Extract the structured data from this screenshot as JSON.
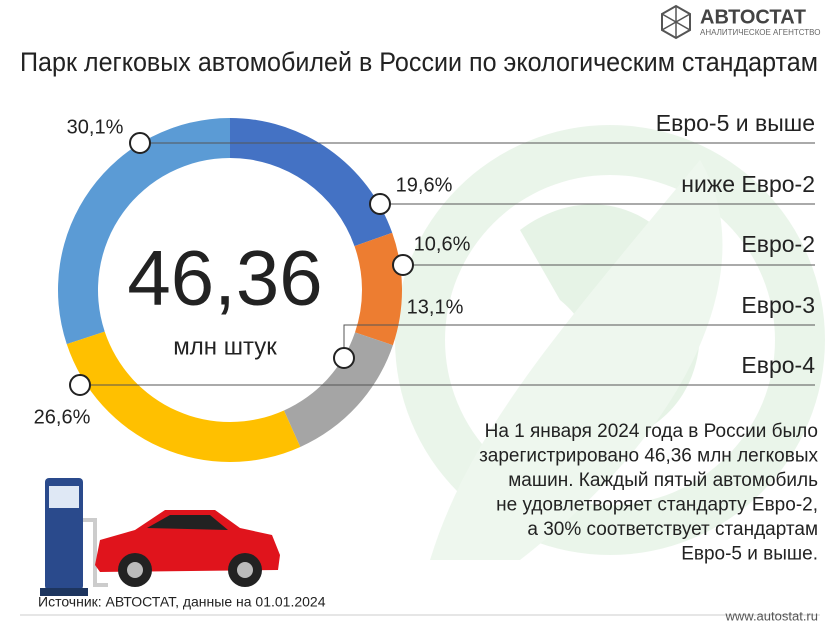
{
  "chart_data": {
    "type": "donut",
    "title": "Парк легковых автомобилей в России по экологическим стандартам",
    "brand": "АВТОСТАТ",
    "brand_subtitle": "АНАЛИТИЧЕСКОЕ АГЕНТСТВО",
    "total": "46,36",
    "total_unit": "млн штук",
    "categories": [
      "Евро-5 и выше",
      "ниже Евро-2",
      "Евро-2",
      "Евро-3",
      "Евро-4"
    ],
    "values": [
      30.1,
      19.6,
      10.6,
      13.1,
      26.6
    ],
    "value_labels": [
      "30,1%",
      "19,6%",
      "10,6%",
      "13,1%",
      "26,6%"
    ],
    "colors": [
      "#5b9bd5",
      "#4472c4",
      "#ed7d31",
      "#a5a5a5",
      "#ffc000"
    ],
    "description": [
      "На 1 января 2024 года в России было",
      "зарегистрировано 46,36 млн легковых",
      "машин. Каждый пятый автомобиль",
      "не удовлетворяет стандарту Евро-2,",
      "а 30% соответствует стандартам",
      "Евро-5 и выше."
    ],
    "source": "Источник: АВТОСТАТ, данные на 01.01.2024",
    "url": "www.autostat.ru"
  }
}
